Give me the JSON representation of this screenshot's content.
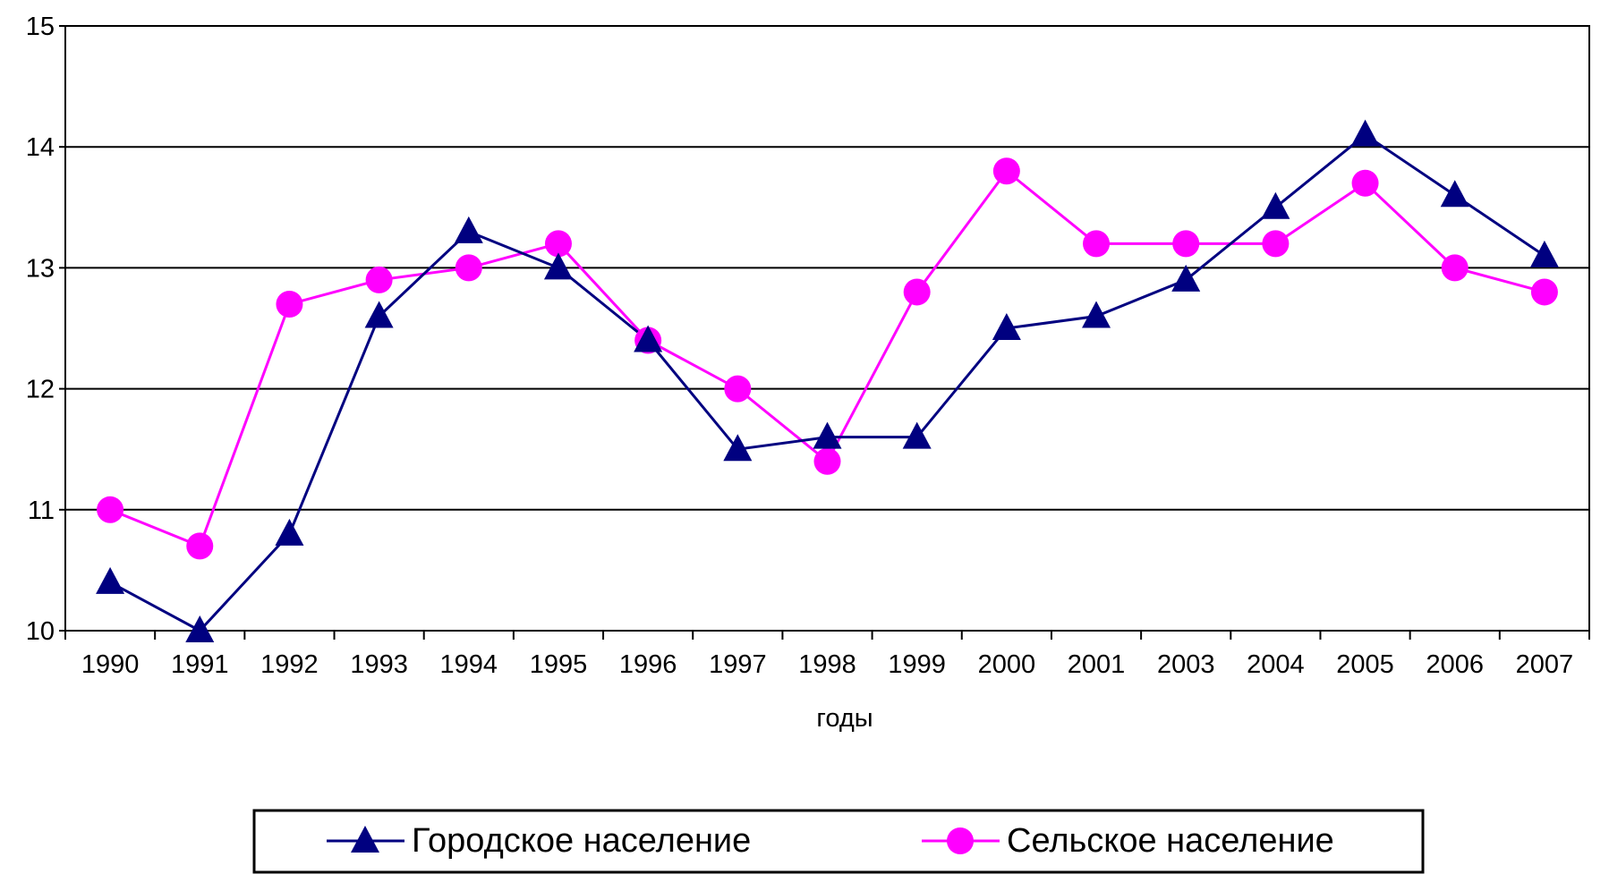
{
  "chart_data": {
    "type": "line",
    "categories": [
      "1990",
      "1991",
      "1992",
      "1993",
      "1994",
      "1995",
      "1996",
      "1997",
      "1998",
      "1999",
      "2000",
      "2001",
      "2003",
      "2004",
      "2005",
      "2006",
      "2007"
    ],
    "xlabel": "годы",
    "ylabel": "",
    "ylim": [
      10,
      15
    ],
    "yticks": [
      "10",
      "11",
      "12",
      "13",
      "14",
      "15"
    ],
    "grid": true,
    "legend_position": "bottom",
    "series": [
      {
        "name": "Городское население",
        "color": "#000080",
        "marker": "triangle",
        "values": [
          10.4,
          10.0,
          10.8,
          12.6,
          13.3,
          13.0,
          12.4,
          11.5,
          11.6,
          11.6,
          12.5,
          12.6,
          12.9,
          13.5,
          14.1,
          13.6,
          13.1
        ]
      },
      {
        "name": "Сельское население",
        "color": "#FF00FF",
        "marker": "circle",
        "values": [
          11.0,
          10.7,
          12.7,
          12.9,
          13.0,
          13.2,
          12.4,
          12.0,
          11.4,
          12.8,
          13.8,
          13.2,
          13.2,
          13.2,
          13.7,
          13.0,
          12.8
        ]
      }
    ]
  }
}
